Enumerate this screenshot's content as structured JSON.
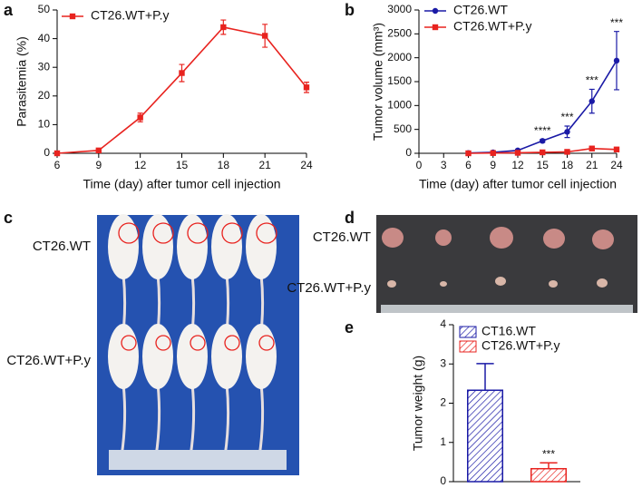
{
  "chart_data": [
    {
      "panel": "a",
      "type": "line",
      "x": [
        6,
        9,
        12,
        15,
        18,
        21,
        24
      ],
      "xlim": [
        6,
        24
      ],
      "xticks": [
        6,
        9,
        12,
        15,
        18,
        21,
        24
      ],
      "ylim": [
        0,
        50
      ],
      "yticks": [
        0,
        10,
        20,
        30,
        40,
        50
      ],
      "xlabel": "Time (day) after tumor cell injection",
      "ylabel": "Parasitemia (%)",
      "legend": "upper left",
      "series": [
        {
          "name": "CT26.WT+P.y",
          "color": "#e8231f",
          "marker": "square",
          "values": [
            0,
            1,
            12.5,
            28,
            44,
            41,
            23
          ],
          "errors": [
            0,
            0.4,
            1.5,
            3,
            2.5,
            4,
            1.8
          ]
        }
      ]
    },
    {
      "panel": "b",
      "type": "line",
      "x": [
        6,
        9,
        12,
        15,
        18,
        21,
        24
      ],
      "xlim": [
        0,
        24
      ],
      "xticks": [
        0,
        3,
        6,
        9,
        12,
        15,
        18,
        21,
        24
      ],
      "ylim": [
        0,
        3000
      ],
      "yticks": [
        0,
        500,
        1000,
        1500,
        2000,
        2500,
        3000
      ],
      "xlabel": "Time (day) after tumor cell injection",
      "ylabel": "Tumor volume (mm³)",
      "legend": "upper left",
      "series": [
        {
          "name": "CT26.WT",
          "color": "#1a1aa6",
          "marker": "circle",
          "values": [
            5,
            20,
            60,
            260,
            450,
            1090,
            1940
          ],
          "errors": [
            5,
            10,
            20,
            30,
            120,
            250,
            610
          ]
        },
        {
          "name": "CT26.WT+P.y",
          "color": "#e8231f",
          "marker": "square",
          "values": [
            0,
            5,
            10,
            20,
            30,
            100,
            80
          ],
          "errors": [
            0,
            3,
            5,
            10,
            10,
            20,
            15
          ]
        }
      ],
      "annotations": [
        {
          "text": "****",
          "x": 15
        },
        {
          "text": "***",
          "x": 18
        },
        {
          "text": "***",
          "x": 21
        },
        {
          "text": "***",
          "x": 24
        }
      ]
    },
    {
      "panel": "e",
      "type": "bar",
      "categories": [
        null,
        null
      ],
      "ylim": [
        0,
        4
      ],
      "yticks": [
        0,
        1,
        2,
        3,
        4
      ],
      "ylabel": "Tumor weight (g)",
      "legend": "upper left",
      "series": [
        {
          "name": "CT16.WT",
          "color": "#1a1aa6",
          "values": [
            2.33,
            null
          ],
          "errors": [
            0.68,
            null
          ]
        },
        {
          "name": "CT26.WT+P.y",
          "color": "#e8231f",
          "values": [
            null,
            0.33
          ],
          "errors": [
            null,
            0.15
          ]
        }
      ],
      "annotations": [
        {
          "text": "***",
          "category": 1
        }
      ]
    }
  ],
  "photos": [
    {
      "panel": "c",
      "labels": [
        "CT26.WT",
        "CT26.WT+P.y"
      ]
    },
    {
      "panel": "d",
      "labels": [
        "CT26.WT",
        "CT26.WT+P.y"
      ]
    }
  ]
}
